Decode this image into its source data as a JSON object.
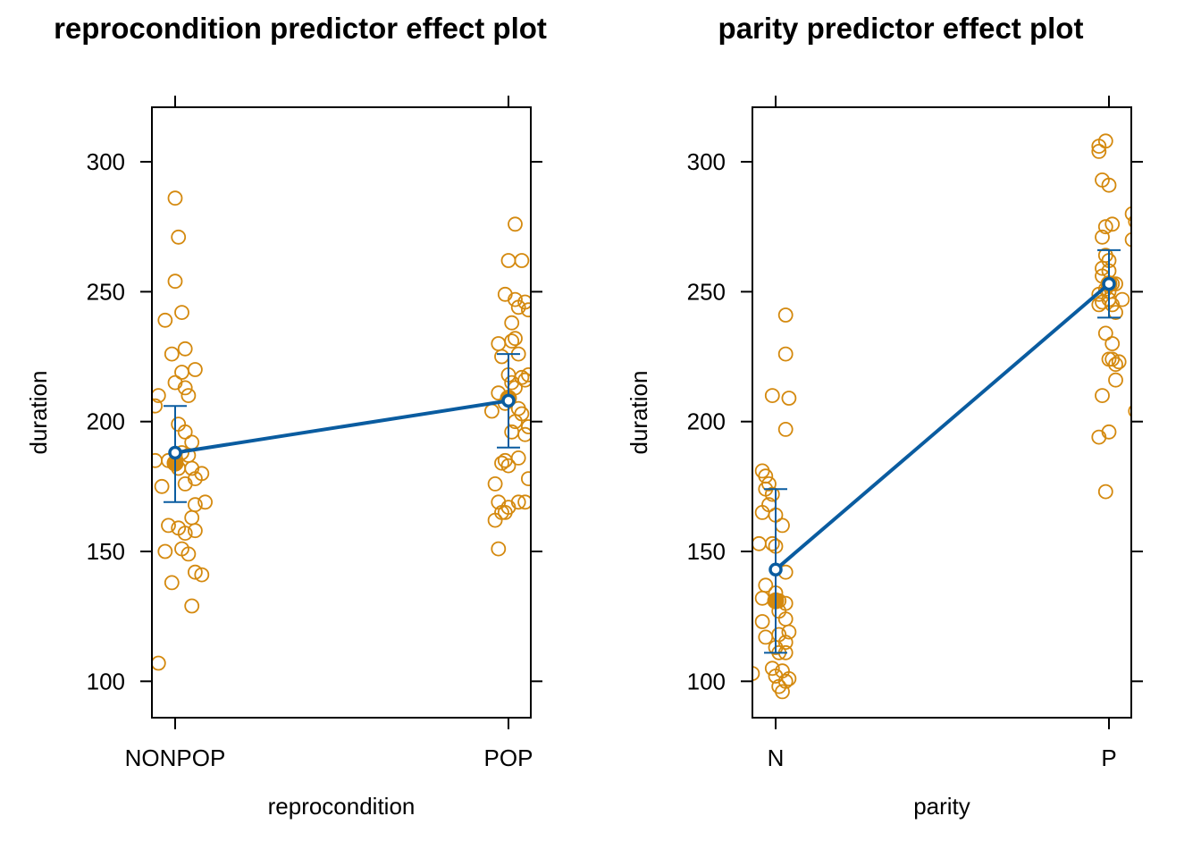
{
  "colors": {
    "effect": "#0A5CA0",
    "points": "#D4890E",
    "axis": "#000000",
    "background": "#ffffff"
  },
  "chart_data": [
    {
      "type": "scatter",
      "title": "reprocondition predictor effect plot",
      "xlabel": "reprocondition",
      "ylabel": "duration",
      "categories": [
        "NONPOP",
        "POP"
      ],
      "y_ticks": [
        100,
        150,
        200,
        250,
        300
      ],
      "ylim": [
        86,
        321
      ],
      "grid": false,
      "effect": {
        "fit": [
          188,
          208
        ],
        "lower": [
          169,
          190
        ],
        "upper": [
          206,
          226
        ]
      },
      "category_means": [
        184,
        209
      ],
      "partial_residuals": [
        [
          [
            0.0,
            286
          ],
          [
            -0.03,
            239
          ],
          [
            0.02,
            242
          ],
          [
            0.03,
            228
          ],
          [
            0.01,
            271
          ],
          [
            -0.05,
            210
          ],
          [
            -0.06,
            206
          ],
          [
            0.0,
            254
          ],
          [
            0.06,
            220
          ],
          [
            -0.01,
            226
          ],
          [
            0.02,
            219
          ],
          [
            0.0,
            215
          ],
          [
            0.03,
            213
          ],
          [
            0.04,
            210
          ],
          [
            0.01,
            199
          ],
          [
            0.03,
            196
          ],
          [
            0.05,
            192
          ],
          [
            -0.02,
            185
          ],
          [
            -0.06,
            185
          ],
          [
            0.02,
            188
          ],
          [
            0.04,
            187
          ],
          [
            0.01,
            182
          ],
          [
            0.05,
            182
          ],
          [
            0.08,
            180
          ],
          [
            0.06,
            178
          ],
          [
            0.03,
            176
          ],
          [
            0.09,
            169
          ],
          [
            0.06,
            168
          ],
          [
            -0.04,
            175
          ],
          [
            0.05,
            163
          ],
          [
            -0.02,
            160
          ],
          [
            0.01,
            159
          ],
          [
            0.03,
            157
          ],
          [
            0.06,
            158
          ],
          [
            -0.03,
            150
          ],
          [
            0.02,
            151
          ],
          [
            0.04,
            149
          ],
          [
            0.06,
            142
          ],
          [
            0.08,
            141
          ],
          [
            -0.01,
            138
          ],
          [
            0.05,
            129
          ],
          [
            -0.05,
            107
          ]
        ],
        [
          [
            0.02,
            276
          ],
          [
            0.0,
            262
          ],
          [
            0.04,
            262
          ],
          [
            -0.01,
            249
          ],
          [
            0.02,
            247
          ],
          [
            0.03,
            244
          ],
          [
            0.05,
            246
          ],
          [
            0.06,
            243
          ],
          [
            0.01,
            238
          ],
          [
            0.02,
            232
          ],
          [
            -0.03,
            230
          ],
          [
            -0.02,
            225
          ],
          [
            0.01,
            231
          ],
          [
            0.03,
            226
          ],
          [
            0.0,
            218
          ],
          [
            0.04,
            217
          ],
          [
            0.05,
            216
          ],
          [
            0.06,
            218
          ],
          [
            0.01,
            215
          ],
          [
            0.02,
            213
          ],
          [
            -0.03,
            211
          ],
          [
            -0.01,
            207
          ],
          [
            0.03,
            205
          ],
          [
            0.04,
            203
          ],
          [
            0.06,
            198
          ],
          [
            0.01,
            196
          ],
          [
            0.02,
            200
          ],
          [
            -0.05,
            204
          ],
          [
            0.05,
            195
          ],
          [
            -0.01,
            185
          ],
          [
            -0.02,
            184
          ],
          [
            0.0,
            183
          ],
          [
            0.03,
            186
          ],
          [
            0.06,
            178
          ],
          [
            -0.04,
            176
          ],
          [
            -0.03,
            169
          ],
          [
            -0.01,
            165
          ],
          [
            0.0,
            167
          ],
          [
            0.03,
            169
          ],
          [
            0.05,
            169
          ],
          [
            -0.04,
            162
          ],
          [
            -0.02,
            165
          ],
          [
            -0.03,
            151
          ]
        ]
      ]
    },
    {
      "type": "scatter",
      "title": "parity predictor effect plot",
      "xlabel": "parity",
      "ylabel": "duration",
      "categories": [
        "N",
        "P"
      ],
      "y_ticks": [
        100,
        150,
        200,
        250,
        300
      ],
      "ylim": [
        86,
        321
      ],
      "grid": false,
      "effect": {
        "fit": [
          143,
          253
        ],
        "lower": [
          111,
          240
        ],
        "upper": [
          174,
          266
        ]
      },
      "category_means": [
        131,
        253
      ],
      "partial_residuals": [
        [
          [
            0.03,
            241
          ],
          [
            0.03,
            226
          ],
          [
            0.04,
            209
          ],
          [
            -0.01,
            210
          ],
          [
            0.03,
            197
          ],
          [
            -0.04,
            181
          ],
          [
            -0.03,
            179
          ],
          [
            -0.02,
            176
          ],
          [
            -0.03,
            174
          ],
          [
            -0.01,
            172
          ],
          [
            -0.02,
            168
          ],
          [
            -0.04,
            165
          ],
          [
            0.0,
            164
          ],
          [
            0.02,
            160
          ],
          [
            -0.01,
            153
          ],
          [
            0.0,
            152
          ],
          [
            -0.05,
            153
          ],
          [
            0.03,
            142
          ],
          [
            -0.03,
            137
          ],
          [
            0.0,
            134
          ],
          [
            0.01,
            131
          ],
          [
            -0.04,
            132
          ],
          [
            0.03,
            130
          ],
          [
            0.01,
            127
          ],
          [
            0.03,
            124
          ],
          [
            -0.04,
            123
          ],
          [
            0.01,
            118
          ],
          [
            0.04,
            119
          ],
          [
            0.03,
            115
          ],
          [
            -0.03,
            117
          ],
          [
            0.0,
            113
          ],
          [
            0.01,
            111
          ],
          [
            0.03,
            111
          ],
          [
            -0.01,
            105
          ],
          [
            0.0,
            102
          ],
          [
            0.02,
            104
          ],
          [
            -0.07,
            103
          ],
          [
            0.04,
            101
          ],
          [
            0.03,
            100
          ],
          [
            0.01,
            98
          ],
          [
            0.02,
            96
          ]
        ],
        [
          [
            -0.01,
            308
          ],
          [
            -0.03,
            306
          ],
          [
            -0.03,
            304
          ],
          [
            -0.02,
            293
          ],
          [
            0.0,
            291
          ],
          [
            -0.01,
            275
          ],
          [
            0.01,
            276
          ],
          [
            -0.02,
            271
          ],
          [
            -0.01,
            264
          ],
          [
            0.0,
            262
          ],
          [
            -0.02,
            259
          ],
          [
            -0.02,
            256
          ],
          [
            0.0,
            258
          ],
          [
            -0.01,
            251
          ],
          [
            -0.03,
            249
          ],
          [
            0.01,
            253
          ],
          [
            0.02,
            253
          ],
          [
            0.0,
            250
          ],
          [
            -0.02,
            246
          ],
          [
            -0.03,
            245
          ],
          [
            0.0,
            247
          ],
          [
            0.01,
            245
          ],
          [
            0.02,
            242
          ],
          [
            0.04,
            247
          ],
          [
            0.07,
            280
          ],
          [
            0.08,
            277
          ],
          [
            0.07,
            270
          ],
          [
            -0.01,
            234
          ],
          [
            0.01,
            230
          ],
          [
            0.0,
            224
          ],
          [
            0.01,
            224
          ],
          [
            0.02,
            222
          ],
          [
            0.03,
            223
          ],
          [
            0.02,
            216
          ],
          [
            -0.02,
            210
          ],
          [
            0.08,
            204
          ],
          [
            0.0,
            196
          ],
          [
            -0.03,
            194
          ],
          [
            -0.01,
            173
          ]
        ]
      ]
    }
  ]
}
